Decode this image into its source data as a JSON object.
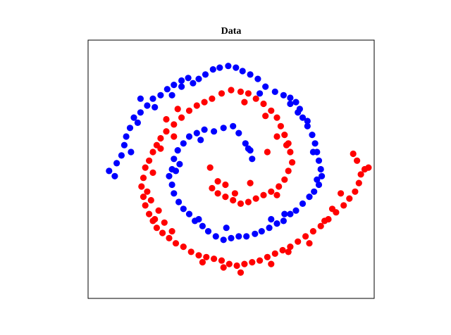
{
  "chart_data": {
    "type": "scatter",
    "title": "Data",
    "xlabel": "",
    "ylabel": "",
    "xlim": [
      -1.5,
      1.5
    ],
    "ylim": [
      -1.5,
      1.5
    ],
    "axis_ticks": "hidden",
    "grid": false,
    "colors": {
      "class_a": "#0000ff",
      "class_b": "#ff0000",
      "frame": "#000000"
    },
    "series": [
      {
        "color": "#0000ff",
        "points": [
          [
            -0.19,
            1.16
          ],
          [
            -0.12,
            1.18
          ],
          [
            -0.03,
            1.2
          ],
          [
            0.05,
            1.18
          ],
          [
            0.12,
            1.14
          ],
          [
            0.2,
            1.1
          ],
          [
            -0.27,
            1.1
          ],
          [
            -0.34,
            1.05
          ],
          [
            -0.45,
            1.06
          ],
          [
            -0.52,
            1.03
          ],
          [
            -0.6,
            0.98
          ],
          [
            -0.67,
            0.93
          ],
          [
            -0.74,
            0.86
          ],
          [
            -0.82,
            0.82
          ],
          [
            -0.88,
            0.74
          ],
          [
            -0.95,
            0.66
          ],
          [
            -1.02,
            0.6
          ],
          [
            -1.06,
            0.48
          ],
          [
            -1.1,
            0.38
          ],
          [
            -1.12,
            0.28
          ],
          [
            -1.15,
            0.16
          ],
          [
            -1.2,
            0.07
          ],
          [
            -1.28,
            -0.02
          ],
          [
            -1.22,
            -0.08
          ],
          [
            -0.98,
            0.54
          ],
          [
            -0.8,
            0.72
          ],
          [
            -0.62,
            0.86
          ],
          [
            -0.4,
            1.0
          ],
          [
            0.28,
            1.05
          ],
          [
            0.36,
            0.96
          ],
          [
            0.46,
            0.9
          ],
          [
            0.55,
            0.86
          ],
          [
            0.62,
            0.83
          ],
          [
            0.68,
            0.78
          ],
          [
            0.72,
            0.7
          ],
          [
            0.75,
            0.6
          ],
          [
            0.8,
            0.5
          ],
          [
            0.85,
            0.4
          ],
          [
            0.88,
            0.3
          ],
          [
            0.9,
            0.2
          ],
          [
            0.92,
            0.1
          ],
          [
            0.94,
            0.0
          ],
          [
            0.95,
            -0.08
          ],
          [
            0.92,
            -0.18
          ],
          [
            0.87,
            -0.26
          ],
          [
            0.82,
            -0.32
          ],
          [
            0.75,
            -0.4
          ],
          [
            0.68,
            -0.48
          ],
          [
            0.62,
            -0.52
          ],
          [
            0.55,
            -0.6
          ],
          [
            0.48,
            -0.63
          ],
          [
            0.4,
            -0.68
          ],
          [
            0.32,
            -0.72
          ],
          [
            0.25,
            -0.75
          ],
          [
            0.16,
            -0.78
          ],
          [
            0.08,
            -0.78
          ],
          [
            0.0,
            -0.8
          ],
          [
            -0.08,
            -0.82
          ],
          [
            -0.16,
            -0.78
          ],
          [
            -0.24,
            -0.72
          ],
          [
            -0.3,
            -0.66
          ],
          [
            -0.38,
            -0.6
          ],
          [
            -0.44,
            -0.52
          ],
          [
            -0.5,
            -0.46
          ],
          [
            -0.55,
            -0.38
          ],
          [
            -0.6,
            -0.28
          ],
          [
            -0.62,
            -0.18
          ],
          [
            -0.65,
            -0.08
          ],
          [
            -0.62,
            0.0
          ],
          [
            -0.6,
            0.12
          ],
          [
            -0.56,
            0.22
          ],
          [
            -0.5,
            0.3
          ],
          [
            -0.44,
            0.38
          ],
          [
            -0.36,
            0.42
          ],
          [
            -0.28,
            0.46
          ],
          [
            -0.18,
            0.44
          ],
          [
            -0.08,
            0.48
          ],
          [
            0.02,
            0.5
          ],
          [
            0.08,
            0.42
          ],
          [
            0.15,
            0.3
          ],
          [
            0.2,
            0.22
          ],
          [
            0.22,
            0.12
          ],
          [
            0.8,
            0.56
          ],
          [
            0.7,
            0.66
          ],
          [
            0.62,
            0.76
          ],
          [
            0.86,
            0.2
          ],
          [
            0.9,
            -0.12
          ],
          [
            0.56,
            -0.52
          ],
          [
            0.42,
            -0.58
          ],
          [
            -0.05,
            -0.68
          ],
          [
            -0.34,
            -0.58
          ],
          [
            -0.58,
            -0.02
          ],
          [
            -0.54,
            0.06
          ],
          [
            -0.32,
            0.34
          ],
          [
            -0.95,
            0.82
          ],
          [
            -1.05,
            0.2
          ],
          [
            -0.52,
            0.96
          ],
          [
            0.3,
            0.88
          ],
          [
            0.18,
            0.24
          ]
        ]
      },
      {
        "color": "#ff0000",
        "points": [
          [
            -0.2,
            0.82
          ],
          [
            -0.28,
            0.78
          ],
          [
            -0.36,
            0.74
          ],
          [
            -0.44,
            0.68
          ],
          [
            -0.52,
            0.6
          ],
          [
            -0.6,
            0.52
          ],
          [
            -0.68,
            0.44
          ],
          [
            -0.74,
            0.36
          ],
          [
            -0.78,
            0.28
          ],
          [
            -0.82,
            0.2
          ],
          [
            -0.86,
            0.1
          ],
          [
            -0.9,
            0.02
          ],
          [
            -0.92,
            -0.1
          ],
          [
            -0.94,
            -0.2
          ],
          [
            -0.92,
            -0.32
          ],
          [
            -0.9,
            -0.42
          ],
          [
            -0.86,
            -0.52
          ],
          [
            -0.82,
            -0.6
          ],
          [
            -0.78,
            -0.68
          ],
          [
            -0.72,
            -0.74
          ],
          [
            -0.65,
            -0.8
          ],
          [
            -0.58,
            -0.86
          ],
          [
            -0.5,
            -0.9
          ],
          [
            -0.42,
            -0.96
          ],
          [
            -0.34,
            -1.0
          ],
          [
            -0.26,
            -1.02
          ],
          [
            -0.18,
            -1.04
          ],
          [
            -0.1,
            -1.06
          ],
          [
            -0.02,
            -1.1
          ],
          [
            0.06,
            -1.12
          ],
          [
            0.14,
            -1.1
          ],
          [
            0.22,
            -1.08
          ],
          [
            0.3,
            -1.06
          ],
          [
            0.38,
            -1.02
          ],
          [
            0.46,
            -0.98
          ],
          [
            0.54,
            -0.94
          ],
          [
            0.62,
            -0.9
          ],
          [
            0.7,
            -0.84
          ],
          [
            0.78,
            -0.78
          ],
          [
            0.86,
            -0.72
          ],
          [
            0.94,
            -0.66
          ],
          [
            1.02,
            -0.58
          ],
          [
            1.1,
            -0.5
          ],
          [
            1.18,
            -0.42
          ],
          [
            1.24,
            -0.34
          ],
          [
            1.3,
            -0.26
          ],
          [
            1.34,
            -0.16
          ],
          [
            1.36,
            -0.06
          ],
          [
            1.4,
            0.0
          ],
          [
            1.44,
            0.02
          ],
          [
            1.32,
            0.1
          ],
          [
            1.28,
            0.18
          ],
          [
            -0.1,
            0.88
          ],
          [
            0.0,
            0.92
          ],
          [
            0.1,
            0.9
          ],
          [
            0.18,
            0.88
          ],
          [
            0.26,
            0.82
          ],
          [
            0.34,
            0.76
          ],
          [
            0.42,
            0.68
          ],
          [
            0.48,
            0.6
          ],
          [
            0.52,
            0.5
          ],
          [
            0.56,
            0.4
          ],
          [
            0.6,
            0.3
          ],
          [
            0.62,
            0.2
          ],
          [
            0.64,
            0.08
          ],
          [
            0.6,
            -0.02
          ],
          [
            0.56,
            -0.12
          ],
          [
            0.5,
            -0.2
          ],
          [
            0.42,
            -0.26
          ],
          [
            0.34,
            -0.3
          ],
          [
            0.26,
            -0.34
          ],
          [
            0.18,
            -0.38
          ],
          [
            0.1,
            -0.4
          ],
          [
            0.02,
            -0.36
          ],
          [
            -0.06,
            -0.32
          ],
          [
            -0.14,
            -0.28
          ],
          [
            -0.2,
            -0.22
          ],
          [
            -0.14,
            -0.14
          ],
          [
            -0.06,
            -0.18
          ],
          [
            -0.22,
            0.02
          ],
          [
            -0.8,
            -0.58
          ],
          [
            -0.7,
            -0.62
          ],
          [
            -0.62,
            -0.72
          ],
          [
            -0.76,
            -0.48
          ],
          [
            -0.84,
            -0.36
          ],
          [
            -0.74,
            0.24
          ],
          [
            -0.68,
            0.58
          ],
          [
            -0.56,
            0.7
          ],
          [
            0.38,
            0.2
          ],
          [
            0.48,
            0.38
          ],
          [
            1.15,
            -0.28
          ],
          [
            1.06,
            -0.46
          ],
          [
            0.98,
            -0.6
          ],
          [
            0.82,
            -0.86
          ],
          [
            0.6,
            -0.96
          ],
          [
            0.42,
            -1.1
          ],
          [
            0.1,
            -1.2
          ],
          [
            -0.08,
            -1.14
          ],
          [
            -0.3,
            -1.08
          ],
          [
            0.04,
            -0.28
          ],
          [
            0.2,
            -0.16
          ],
          [
            0.36,
            0.62
          ],
          [
            0.14,
            0.78
          ],
          [
            0.48,
            -0.3
          ],
          [
            0.58,
            0.28
          ],
          [
            -0.6,
            0.38
          ],
          [
            -0.82,
            -0.04
          ],
          [
            -0.88,
            -0.26
          ]
        ]
      }
    ]
  }
}
